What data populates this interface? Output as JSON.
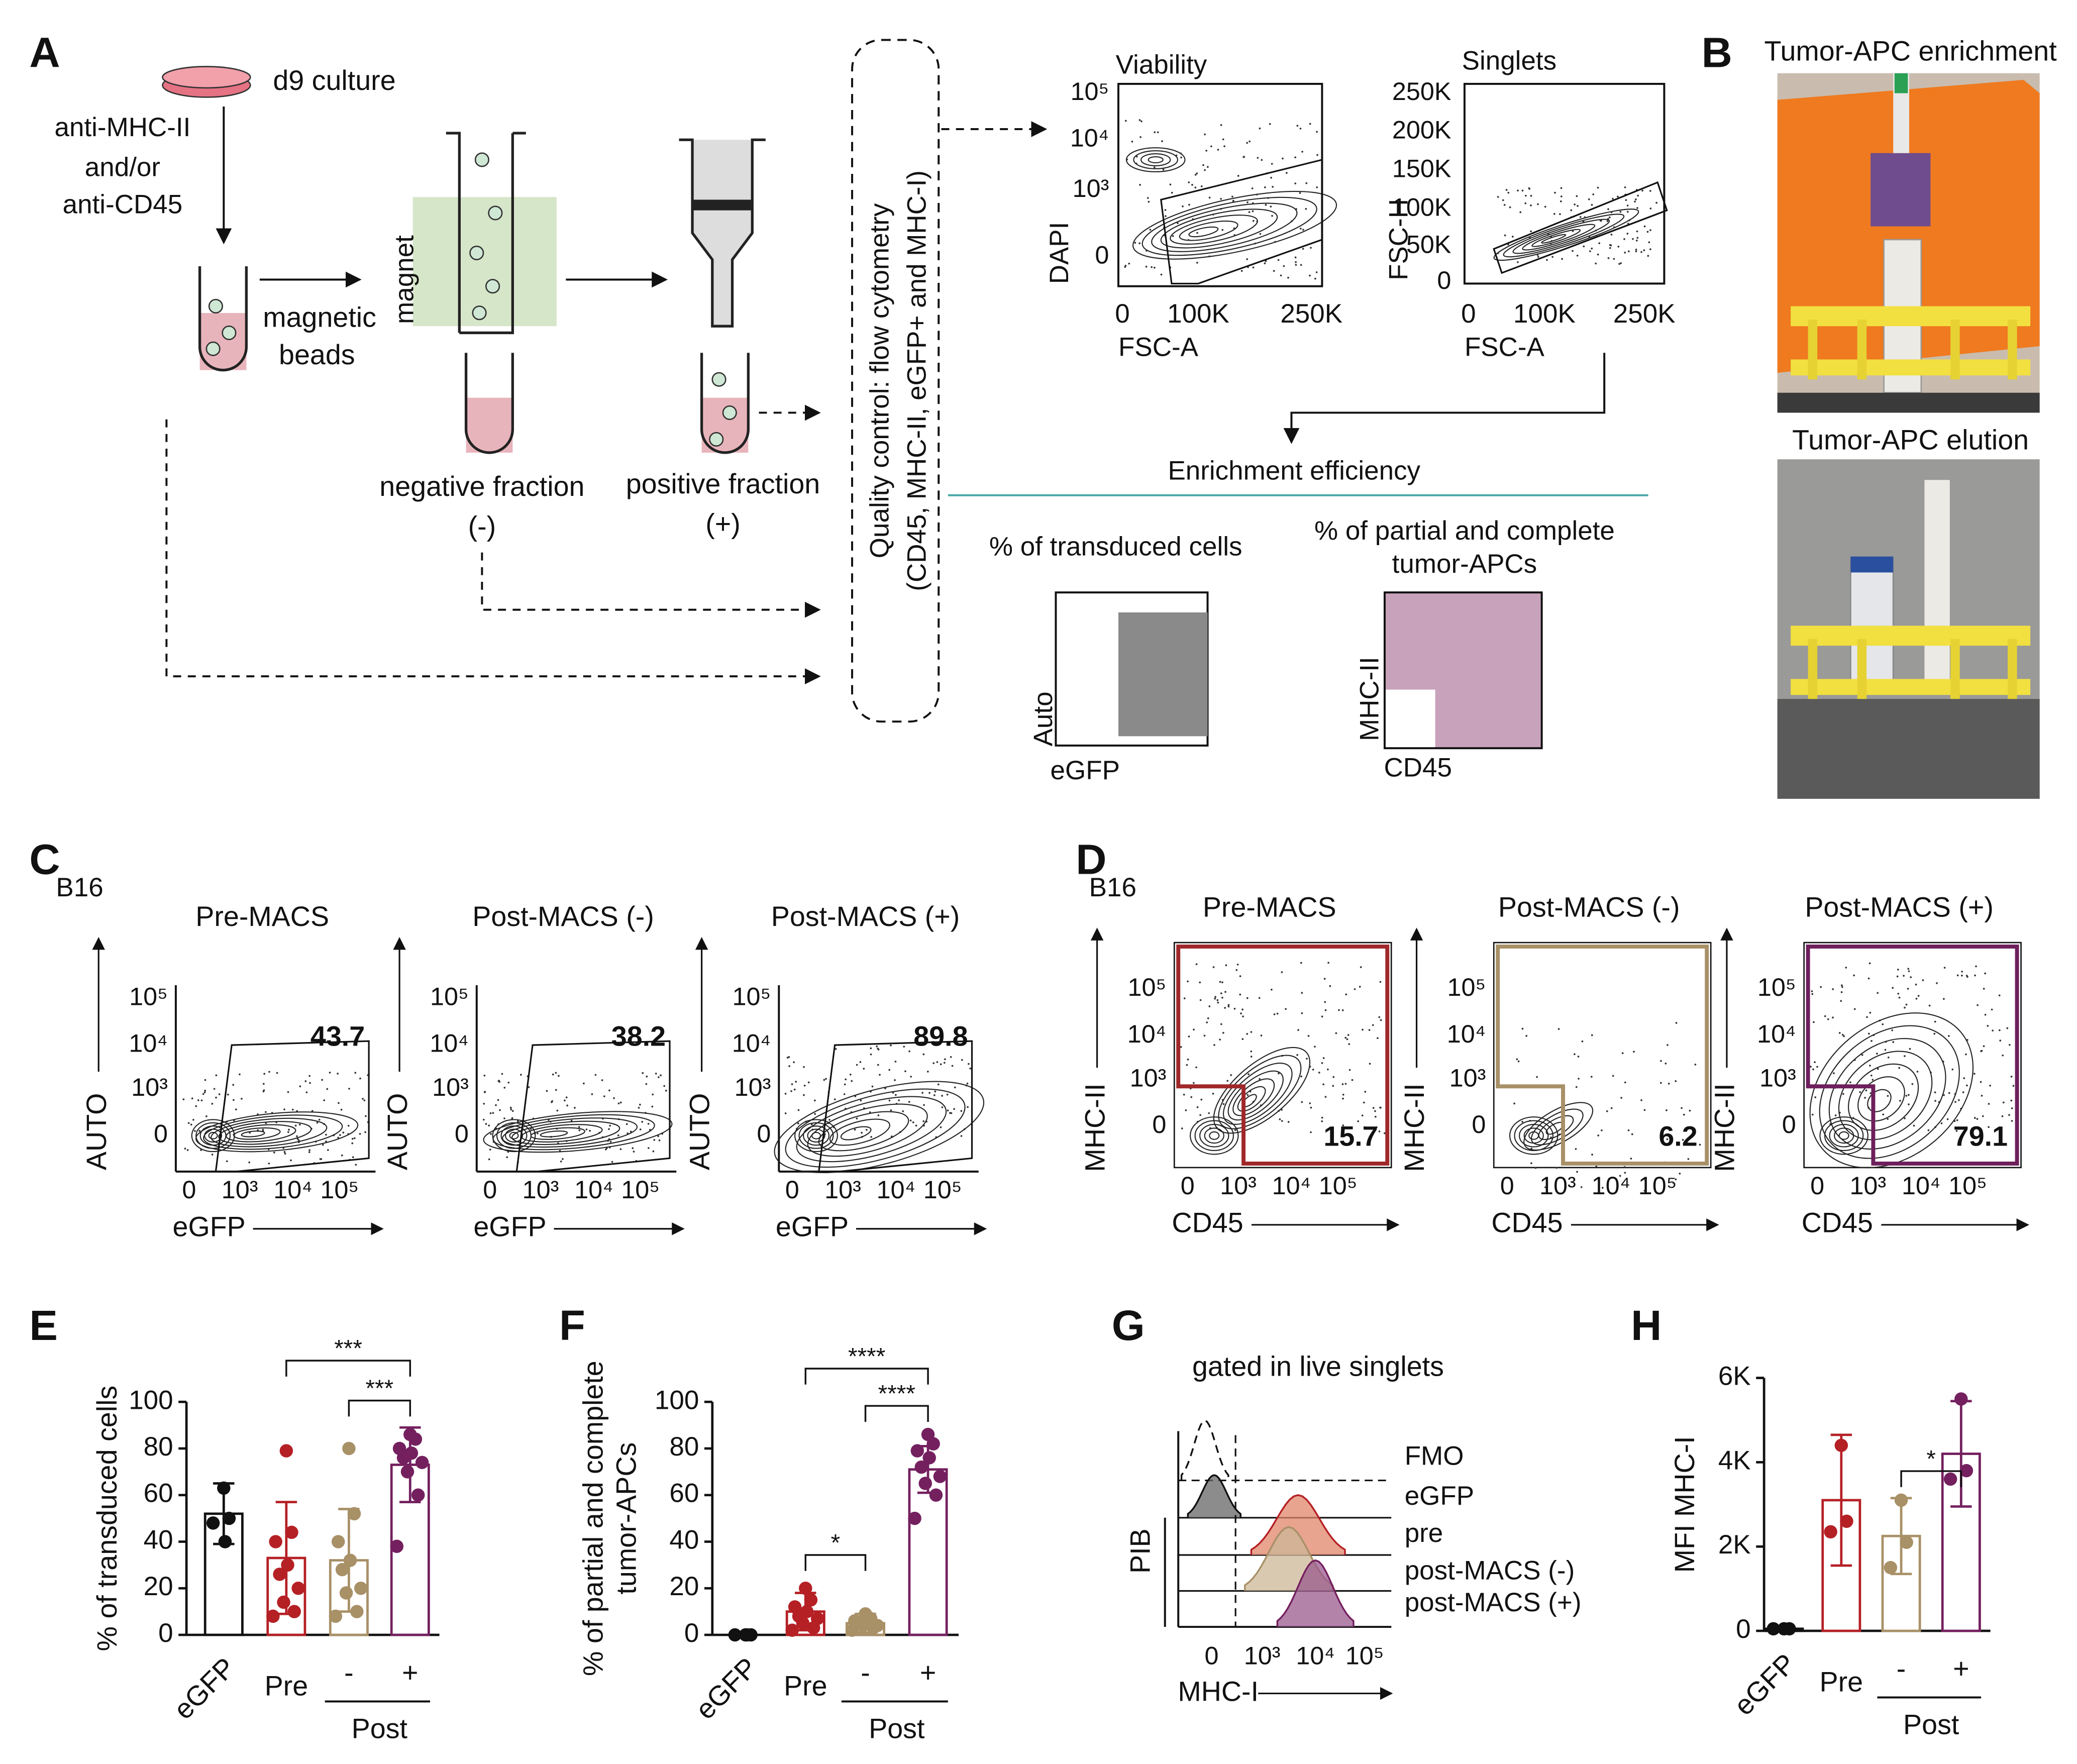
{
  "panel_letters": [
    "A",
    "B",
    "C",
    "D",
    "E",
    "F",
    "G",
    "H"
  ],
  "panel_a": {
    "culture": "d9 culture",
    "antibody": [
      "anti-MHC-II",
      "and/or",
      "anti-CD45"
    ],
    "beads": [
      "magnetic",
      "beads"
    ],
    "magnet": "magnet",
    "negative": [
      "negative fraction",
      "(-)"
    ],
    "positive": [
      "positive fraction",
      "(+)"
    ],
    "qc": [
      "Quality control: flow cytometry",
      "(CD45, MHC-II, eGFP+ and MHC-I)"
    ],
    "viability": {
      "title": "Viability",
      "ylabel": "DAPI",
      "xlabel": "FSC-A",
      "yticks": [
        "10⁵",
        "10⁴",
        "10³",
        "0"
      ],
      "xticks": [
        "0",
        "100K",
        "250K"
      ]
    },
    "singlets": {
      "title": "Singlets",
      "ylabel": "FSC-H",
      "xlabel": "FSC-A",
      "yticks": [
        "250K",
        "200K",
        "150K",
        "100K",
        "50K",
        "0"
      ],
      "xticks": [
        "0",
        "100K",
        "250K"
      ]
    },
    "efficiency": "Enrichment efficiency",
    "transduced": {
      "title": "% of transduced cells",
      "ylabel": "Auto",
      "xlabel": "eGFP"
    },
    "apc": {
      "title": [
        "% of partial and complete",
        "tumor-APCs"
      ],
      "ylabel": "MHC-II",
      "xlabel": "CD45"
    }
  },
  "panel_b": {
    "top": "Tumor-APC enrichment",
    "bottom": "Tumor-APC elution"
  },
  "panel_c": {
    "cell": "B16",
    "ylabel": "AUTO",
    "xlabel": "eGFP",
    "yticks": [
      "10⁵",
      "10⁴",
      "10³",
      "0"
    ],
    "xticks": [
      "0",
      "10³",
      "10⁴",
      "10⁵"
    ],
    "plots": [
      {
        "title": "Pre-MACS",
        "gate": 43.7
      },
      {
        "title": "Post-MACS (-)",
        "gate": 38.2
      },
      {
        "title": "Post-MACS (+)",
        "gate": 89.8
      }
    ]
  },
  "panel_d": {
    "cell": "B16",
    "ylabel": "MHC-II",
    "xlabel": "CD45",
    "yticks": [
      "10⁵",
      "10⁴",
      "10³",
      "0"
    ],
    "xticks": [
      "0",
      "10³",
      "10⁴",
      "10⁵"
    ],
    "plots": [
      {
        "title": "Pre-MACS",
        "gate": 15.7,
        "color": "#a0282a"
      },
      {
        "title": "Post-MACS (-)",
        "gate": 6.2,
        "color": "#a89067"
      },
      {
        "title": "Post-MACS (+)",
        "gate": 79.1,
        "color": "#6e1f5c"
      }
    ]
  },
  "panel_g": {
    "title": "gated in live singlets",
    "ylabel": "PIB",
    "xlabel": "MHC-I",
    "xticks": [
      "0",
      "10³",
      "10⁴",
      "10⁵"
    ],
    "tracks": [
      "FMO",
      "eGFP",
      "pre",
      "post-MACS (-)",
      "post-MACS (+)"
    ]
  },
  "chart_data": [
    {
      "type": "bar",
      "ylabel": "% of transduced cells",
      "categories": [
        "eGFP",
        "Pre",
        "-",
        "+"
      ],
      "group_label": "Post",
      "colors": [
        "#111111",
        "#b52025",
        "#a89067",
        "#74205f"
      ],
      "values": [
        52,
        33,
        32,
        73
      ],
      "errors": [
        13,
        24,
        22,
        16
      ],
      "points": [
        [
          63,
          50,
          48,
          40
        ],
        [
          79,
          44,
          40,
          30,
          26,
          20,
          14,
          10,
          8
        ],
        [
          80,
          52,
          40,
          32,
          28,
          20,
          18,
          10,
          8
        ],
        [
          86,
          84,
          80,
          78,
          76,
          74,
          70,
          60,
          38
        ]
      ],
      "ylim": [
        0,
        100
      ],
      "yticks": [
        0,
        20,
        40,
        60,
        80,
        100
      ],
      "significance": [
        {
          "label": "***",
          "from": 1,
          "to": 3
        },
        {
          "label": "***",
          "from": 2,
          "to": 3
        }
      ]
    },
    {
      "type": "bar",
      "ylabel": [
        "% of partial and complete",
        "tumor-APCs"
      ],
      "categories": [
        "eGFP",
        "Pre",
        "-",
        "+"
      ],
      "group_label": "Post",
      "colors": [
        "#111111",
        "#b52025",
        "#a89067",
        "#74205f"
      ],
      "values": [
        0,
        10,
        5,
        71
      ],
      "errors": [
        0,
        8,
        4,
        10
      ],
      "points": [
        [
          0,
          0,
          0,
          0
        ],
        [
          20,
          15,
          12,
          10,
          8,
          7,
          5,
          3,
          2
        ],
        [
          9,
          7,
          6,
          5,
          5,
          4,
          4,
          3,
          2
        ],
        [
          86,
          82,
          79,
          76,
          72,
          68,
          65,
          60,
          50
        ]
      ],
      "ylim": [
        0,
        100
      ],
      "yticks": [
        0,
        20,
        40,
        60,
        80,
        100
      ],
      "significance": [
        {
          "label": "****",
          "from": 1,
          "to": 3
        },
        {
          "label": "****",
          "from": 2,
          "to": 3
        },
        {
          "label": "*",
          "from": 1,
          "to": 2
        }
      ]
    },
    {
      "type": "bar",
      "ylabel": "MFI MHC-I",
      "categories": [
        "eGFP",
        "Pre",
        "-",
        "+"
      ],
      "group_label": "Post",
      "colors": [
        "#111111",
        "#b52025",
        "#a89067",
        "#74205f"
      ],
      "values": [
        50,
        3100,
        2250,
        4200
      ],
      "errors": [
        0,
        1550,
        900,
        1250
      ],
      "points": [
        [
          50,
          50,
          50
        ],
        [
          4400,
          2600,
          2350
        ],
        [
          3100,
          2100,
          1500
        ],
        [
          5500,
          3800,
          3600
        ]
      ],
      "ylim": [
        0,
        6000
      ],
      "yticks": [
        0,
        {
          "value": 2000,
          "label": "2K"
        },
        {
          "value": 4000,
          "label": "4K"
        },
        {
          "value": 6000,
          "label": "6K"
        }
      ],
      "significance": [
        {
          "label": "*",
          "from": 2,
          "to": 3
        }
      ]
    }
  ]
}
